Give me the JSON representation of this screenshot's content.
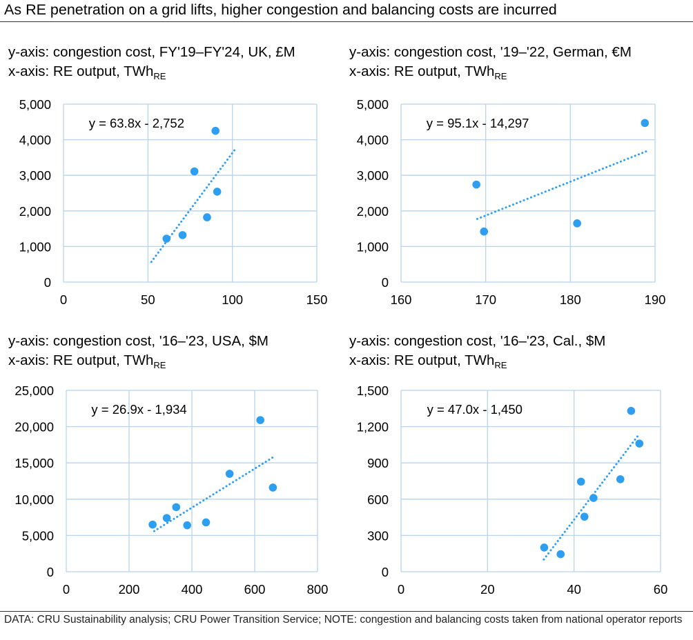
{
  "title": "As RE penetration on a grid lifts, higher congestion and balancing costs are incurred",
  "footer": "DATA: CRU Sustainability analysis; CRU Power Transition Service; NOTE: congestion and balancing costs taken from national operator reports",
  "colors": {
    "marker": "#2e9ff0",
    "trend": "#2e9ff0",
    "grid": "#b7d3ee",
    "text": "#000000"
  },
  "chart_data": [
    {
      "type": "scatter",
      "ylabel_line": "y-axis: congestion cost, FY'19–FY'24, UK, £M",
      "xlabel_line": "x-axis: RE output, TWh",
      "xlabel_sub": "RE",
      "equation": "y = 63.8x - 2,752",
      "xlim": [
        0,
        150
      ],
      "ylim": [
        0,
        5000
      ],
      "xticks": [
        0,
        50,
        100,
        150
      ],
      "yticks": [
        0,
        1000,
        2000,
        3000,
        4000,
        5000
      ],
      "xtick_labels": [
        "0",
        "50",
        "100",
        "150"
      ],
      "ytick_labels": [
        "0",
        "1,000",
        "2,000",
        "3,000",
        "4,000",
        "5,000"
      ],
      "trendline": {
        "slope": 63.8,
        "intercept": -2752,
        "x_range": [
          52,
          102
        ]
      },
      "points": [
        {
          "x": 61,
          "y": 1220
        },
        {
          "x": 70.5,
          "y": 1320
        },
        {
          "x": 77.5,
          "y": 3110
        },
        {
          "x": 85,
          "y": 1820
        },
        {
          "x": 90,
          "y": 4250
        },
        {
          "x": 91,
          "y": 2540
        }
      ]
    },
    {
      "type": "scatter",
      "ylabel_line": "y-axis: congestion cost, '19–'22, German, €M",
      "xlabel_line": "x-axis: RE output, TWh",
      "xlabel_sub": "RE",
      "equation": "y = 95.1x - 14,297",
      "xlim": [
        160,
        190
      ],
      "ylim": [
        0,
        5000
      ],
      "xticks": [
        160,
        170,
        180,
        190
      ],
      "yticks": [
        0,
        1000,
        2000,
        3000,
        4000,
        5000
      ],
      "xtick_labels": [
        "160",
        "170",
        "180",
        "190"
      ],
      "ytick_labels": [
        "0",
        "1,000",
        "2,000",
        "3,000",
        "4,000",
        "5,000"
      ],
      "trendline": {
        "slope": 95.1,
        "intercept": -14297,
        "x_range": [
          169,
          189
        ]
      },
      "points": [
        {
          "x": 168.9,
          "y": 2740
        },
        {
          "x": 169.8,
          "y": 1420
        },
        {
          "x": 180.8,
          "y": 1650
        },
        {
          "x": 188.8,
          "y": 4470
        }
      ]
    },
    {
      "type": "scatter",
      "ylabel_line": "y-axis: congestion cost, '16–'23, USA, $M",
      "xlabel_line": "x-axis: RE output, TWh",
      "xlabel_sub": "RE",
      "equation": "y = 26.9x - 1,934",
      "xlim": [
        0,
        800
      ],
      "ylim": [
        0,
        25000
      ],
      "xticks": [
        0,
        200,
        400,
        600,
        800
      ],
      "yticks": [
        0,
        5000,
        10000,
        15000,
        20000,
        25000
      ],
      "xtick_labels": [
        "0",
        "200",
        "400",
        "600",
        "800"
      ],
      "ytick_labels": [
        "0",
        "5,000",
        "10,000",
        "15,000",
        "20,000",
        "25,000"
      ],
      "trendline": {
        "slope": 26.9,
        "intercept": -1934,
        "x_range": [
          280,
          660
        ]
      },
      "points": [
        {
          "x": 275,
          "y": 6500
        },
        {
          "x": 320,
          "y": 7400
        },
        {
          "x": 350,
          "y": 8900
        },
        {
          "x": 385,
          "y": 6400
        },
        {
          "x": 445,
          "y": 6800
        },
        {
          "x": 520,
          "y": 13500
        },
        {
          "x": 618,
          "y": 20900
        },
        {
          "x": 658,
          "y": 11600
        }
      ]
    },
    {
      "type": "scatter",
      "ylabel_line": "y-axis: congestion cost, '16–'23, Cal., $M",
      "xlabel_line": "x-axis: RE output, TWh",
      "xlabel_sub": "RE",
      "equation": "y = 47.0x - 1,450",
      "xlim": [
        0,
        60
      ],
      "ylim": [
        0,
        1500
      ],
      "xticks": [
        0,
        20,
        40,
        60
      ],
      "yticks": [
        0,
        300,
        600,
        900,
        1200,
        1500
      ],
      "xtick_labels": [
        "0",
        "20",
        "40",
        "60"
      ],
      "ytick_labels": [
        "0",
        "300",
        "600",
        "900",
        "1,200",
        "1,500"
      ],
      "trendline": {
        "slope": 47.0,
        "intercept": -1450,
        "x_range": [
          33,
          55
        ]
      },
      "points": [
        {
          "x": 33.1,
          "y": 200
        },
        {
          "x": 36.9,
          "y": 145
        },
        {
          "x": 41.6,
          "y": 745
        },
        {
          "x": 42.4,
          "y": 455
        },
        {
          "x": 44.5,
          "y": 610
        },
        {
          "x": 50.7,
          "y": 765
        },
        {
          "x": 53.2,
          "y": 1330
        },
        {
          "x": 55.1,
          "y": 1060
        }
      ]
    }
  ]
}
